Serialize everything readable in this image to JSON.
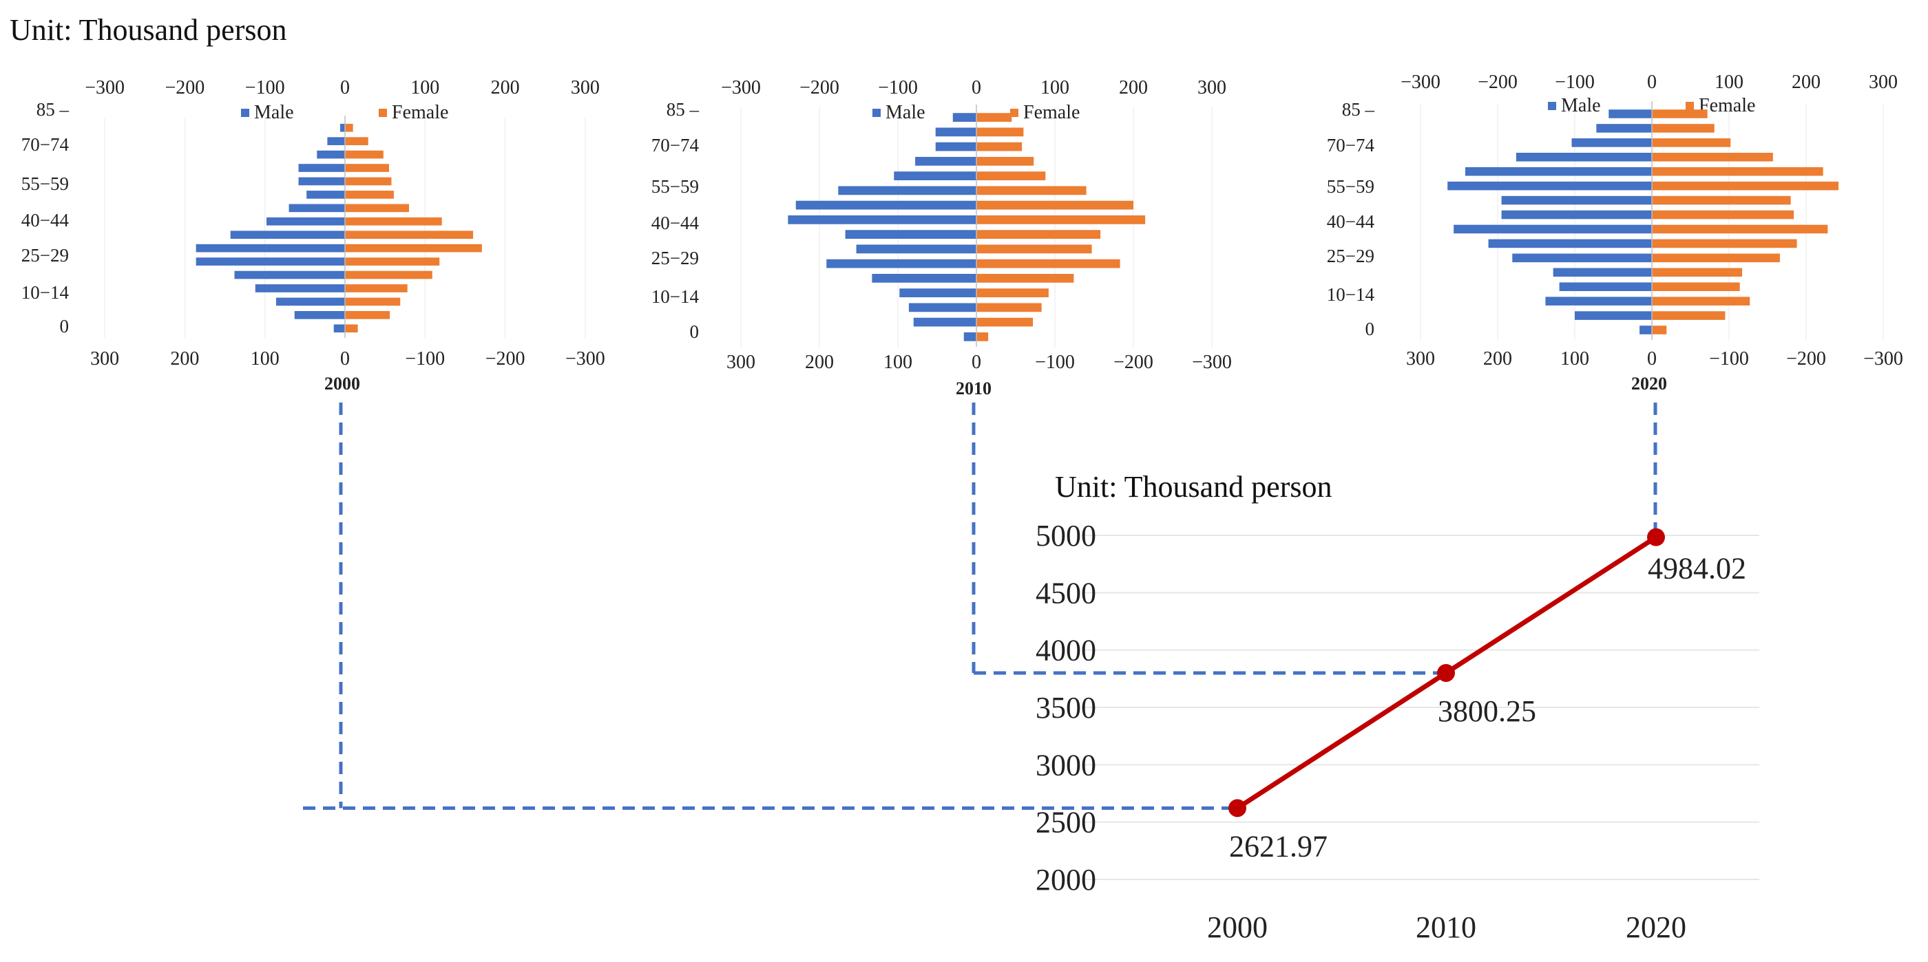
{
  "unit_top": "Unit: Thousand person",
  "unit_main": "Unit: Thousand person",
  "colors": {
    "male": "#4472C4",
    "female": "#ED7D31",
    "line": "#C00000",
    "guide": "#4472C4",
    "grid": "#E6E6E6"
  },
  "pyramid_common": {
    "top_ticks": [
      "−300",
      "−200",
      "−100",
      "0",
      "100",
      "200",
      "300"
    ],
    "bottom_ticks": [
      "300",
      "200",
      "100",
      "0",
      "−100",
      "−200",
      "−300"
    ],
    "age_labels": [
      "85 –",
      "70−74",
      "55−59",
      "40−44",
      "25−29",
      "10−14",
      "0"
    ],
    "legend_male": "Male",
    "legend_female": "Female"
  },
  "chart_data": [
    {
      "type": "bar",
      "title": "2000",
      "xlim": [
        -300,
        300
      ],
      "series": [
        {
          "name": "Male",
          "values": [
            14,
            63,
            86,
            112,
            138,
            186,
            186,
            143,
            98,
            70,
            48,
            58,
            58,
            35,
            22,
            6
          ]
        },
        {
          "name": "Female",
          "values": [
            16,
            56,
            69,
            78,
            109,
            118,
            171,
            160,
            121,
            80,
            61,
            58,
            55,
            48,
            29,
            10
          ]
        }
      ]
    },
    {
      "type": "bar",
      "title": "2010",
      "xlim": [
        -300,
        300
      ],
      "series": [
        {
          "name": "Male",
          "values": [
            16,
            80,
            86,
            98,
            133,
            191,
            153,
            167,
            240,
            230,
            176,
            105,
            78,
            52,
            52,
            30
          ]
        },
        {
          "name": "Female",
          "values": [
            15,
            72,
            83,
            92,
            124,
            183,
            147,
            158,
            215,
            200,
            140,
            88,
            73,
            58,
            60,
            45
          ]
        }
      ]
    },
    {
      "type": "bar",
      "title": "2020",
      "xlim": [
        -300,
        300
      ],
      "series": [
        {
          "name": "Male",
          "values": [
            16,
            100,
            138,
            120,
            128,
            181,
            212,
            257,
            195,
            195,
            265,
            242,
            176,
            104,
            72,
            56
          ]
        },
        {
          "name": "Female",
          "values": [
            19,
            95,
            127,
            114,
            117,
            166,
            188,
            228,
            184,
            180,
            242,
            222,
            157,
            102,
            81,
            72
          ]
        }
      ]
    },
    {
      "type": "line",
      "xlabel": "",
      "ylabel": "",
      "x": [
        "2000",
        "2010",
        "2020"
      ],
      "ylim": [
        2000,
        5000
      ],
      "yticks": [
        "5000",
        "4500",
        "4000",
        "3500",
        "3000",
        "2500",
        "2000"
      ],
      "series": [
        {
          "values": [
            2621.97,
            3800.25,
            4984.02
          ]
        }
      ],
      "data_labels": [
        "2621.97",
        "3800.25",
        "4984.02"
      ]
    }
  ]
}
